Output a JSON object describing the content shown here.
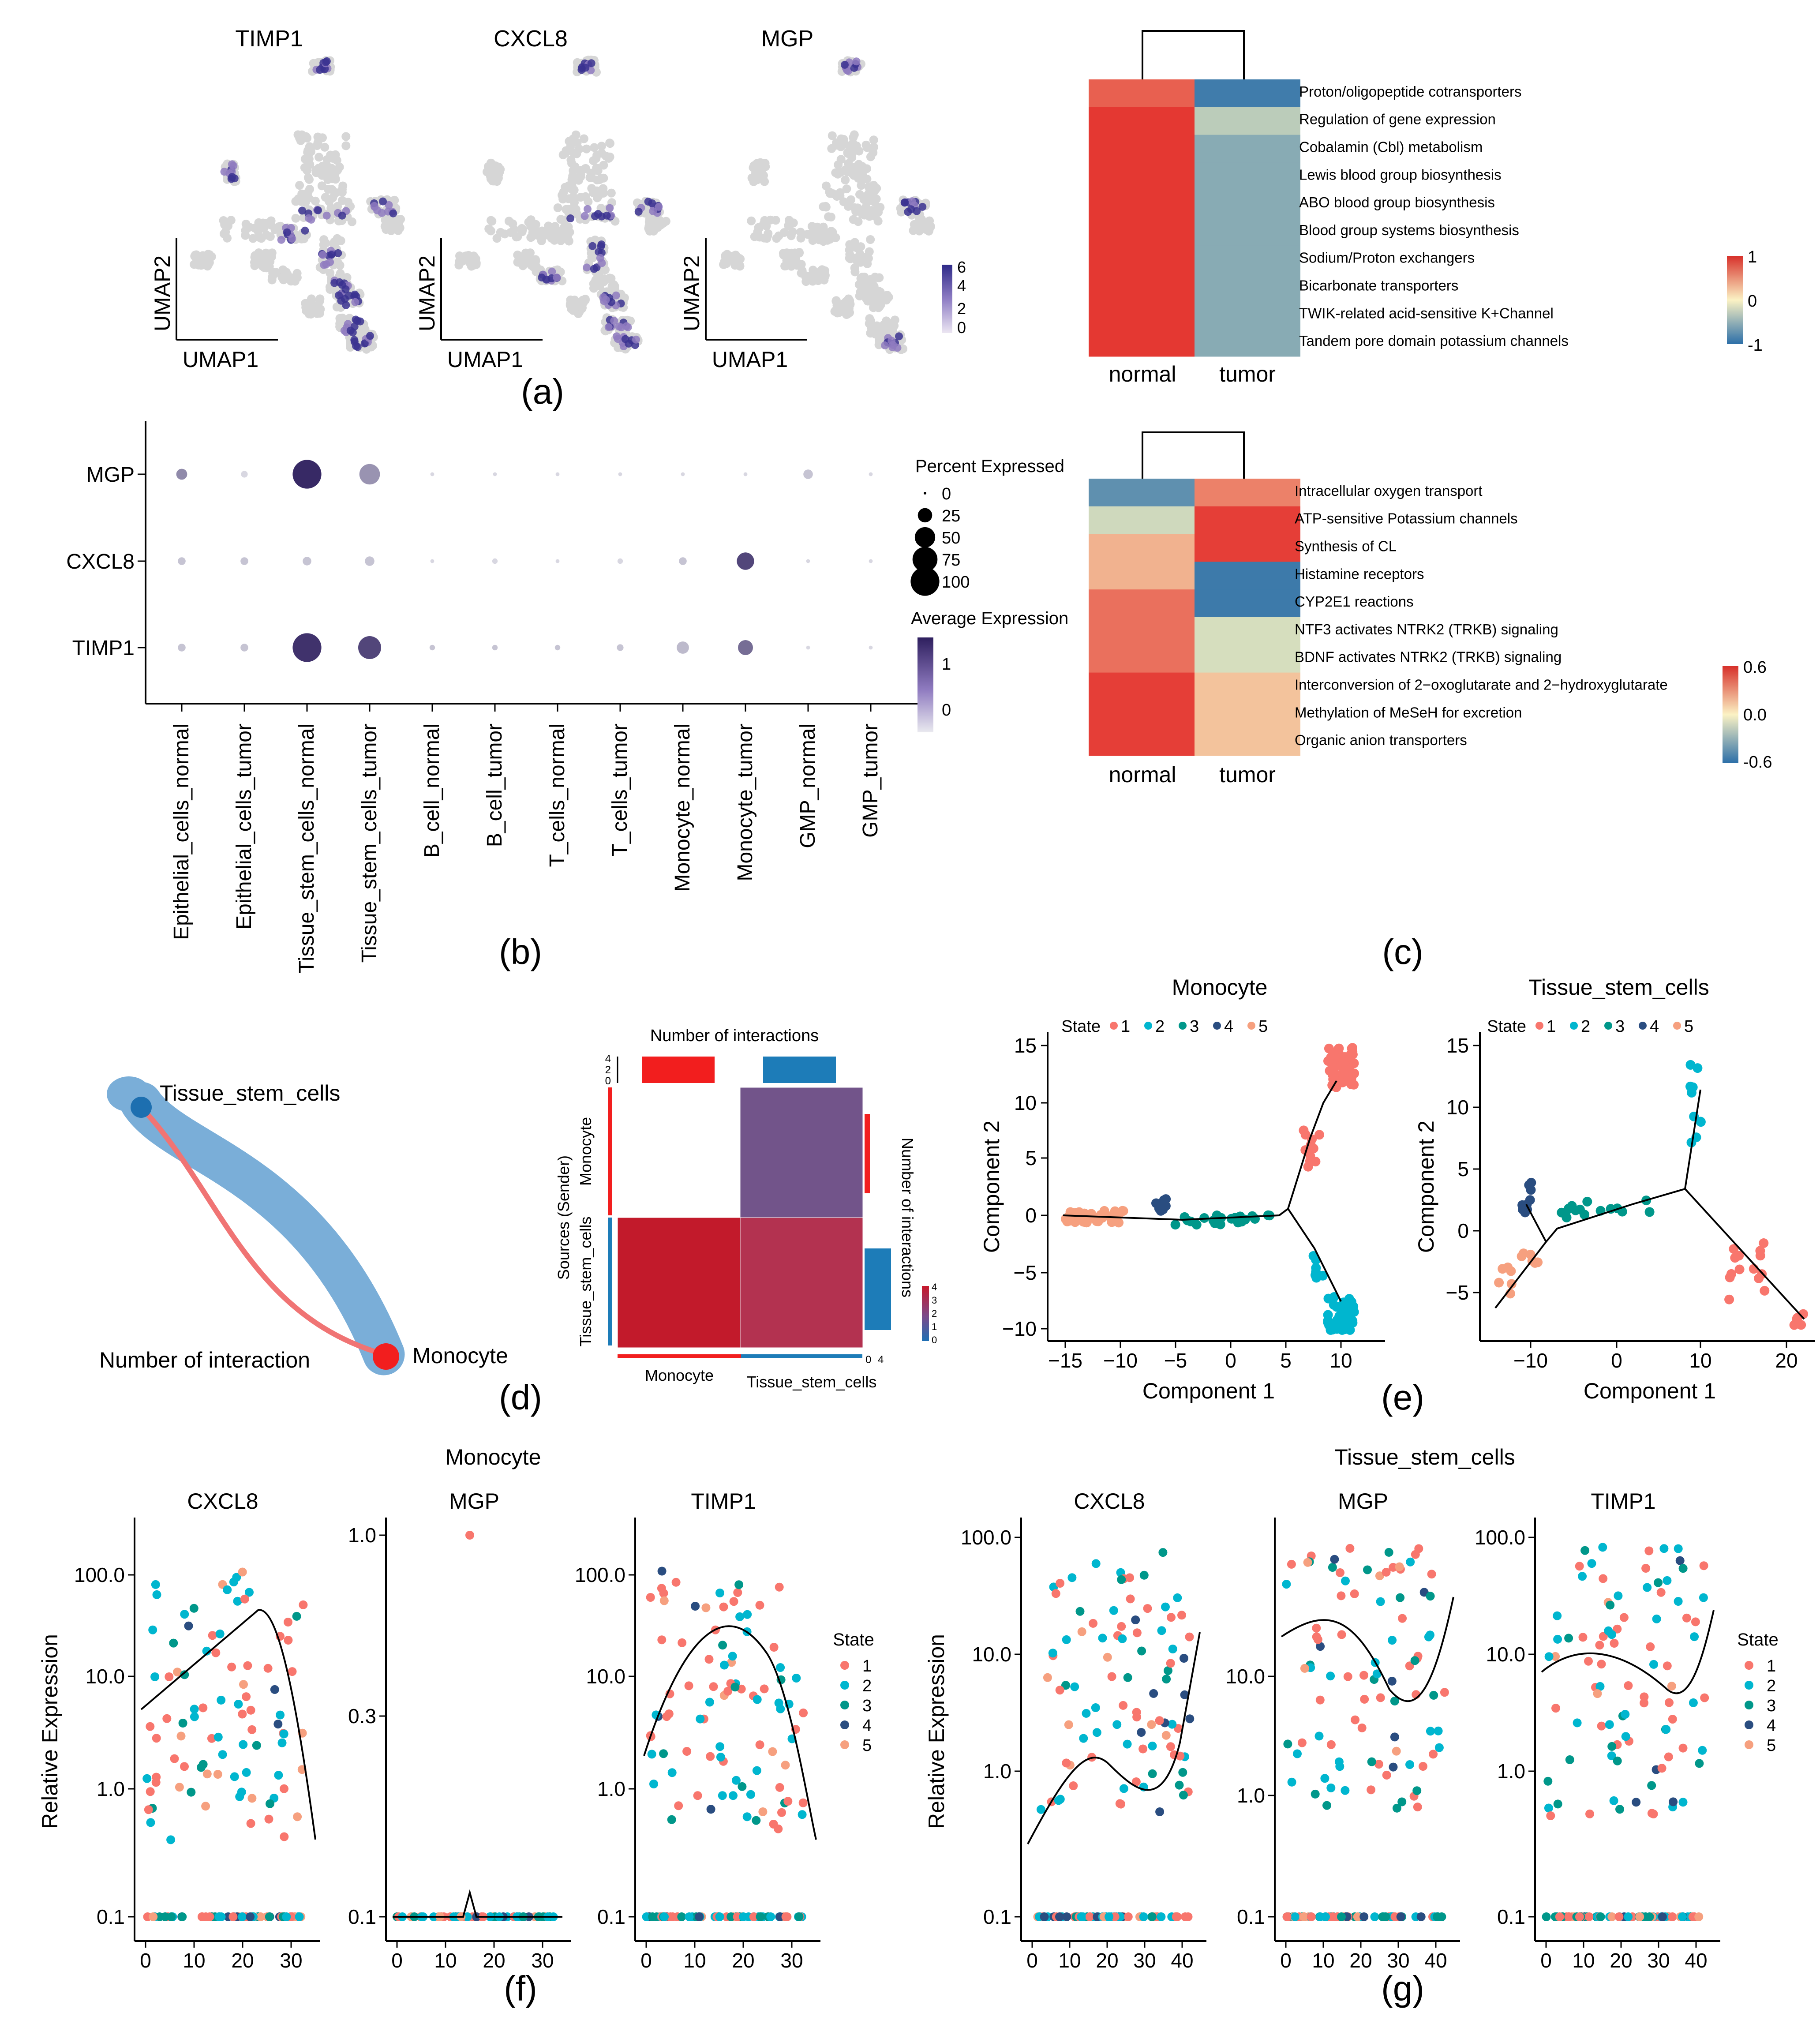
{
  "panel_labels": {
    "a": "(a)",
    "b": "(b)",
    "c": "(c)",
    "d": "(d)",
    "e": "(e)",
    "f": "(f)",
    "g": "(g)"
  },
  "colors": {
    "state1": "#F8766D",
    "state2": "#00B6CF",
    "state3": "#00978A",
    "state4": "#2A4D80",
    "state5": "#F6A07F",
    "heat_pos": "#E32E2A",
    "heat_neg": "#2C6FA8",
    "heat_mid": "#F8F4C2",
    "monocyte": "#F21E1E",
    "tissue": "#1D7CB8",
    "flow_blue": "#6FA9D8",
    "flow_red": "#F07474",
    "grey": "#D6D6D6",
    "purple_dark": "#3A237A",
    "purple_mid": "#8F7BC0"
  },
  "umap": {
    "genes": [
      "TIMP1",
      "CXCL8",
      "MGP"
    ],
    "xlabel": "UMAP1",
    "ylabel": "UMAP2",
    "legend_ticks": [
      "6",
      "4",
      "2",
      "0"
    ],
    "high_color": "#3B3290",
    "low_color": "#E0D8EC"
  },
  "heatmap_top": {
    "columns": [
      "normal",
      "tumor"
    ],
    "rows": [
      "Proton/oligopeptide cotransporters",
      "Regulation of gene expression",
      "Cobalamin (Cbl) metabolism",
      "Lewis blood group biosynthesis",
      "ABO blood group biosynthesis",
      "Blood group systems biosynthesis",
      "Sodium/Proton exchangers",
      "Bicarbonate transporters",
      "TWIK-related acid-sensitive K+Channel",
      "Tandem pore domain potassium channels"
    ],
    "values": [
      [
        0.75,
        -0.9
      ],
      [
        0.95,
        -0.3
      ],
      [
        0.95,
        -0.55
      ],
      [
        0.95,
        -0.55
      ],
      [
        0.95,
        -0.55
      ],
      [
        0.95,
        -0.55
      ],
      [
        0.95,
        -0.55
      ],
      [
        0.95,
        -0.55
      ],
      [
        0.95,
        -0.55
      ],
      [
        0.95,
        -0.55
      ]
    ],
    "scale_ticks": [
      "1",
      "0",
      "-1"
    ]
  },
  "heatmap_bottom": {
    "columns": [
      "normal",
      "tumor"
    ],
    "rows": [
      "Intracellular oxygen transport",
      "ATP-sensitive Potassium channels",
      "Synthesis of CL",
      "Histamine receptors",
      "CYP2E1 reactions",
      "NTF3 activates NTRK2 (TRKB) signaling",
      "BDNF activates NTRK2 (TRKB) signaling",
      "Interconversion of 2−oxoglutarate and 2−hydroxyglutarate",
      "Methylation of MeSeH for excretion",
      "Organic anion transporters"
    ],
    "values": [
      [
        -0.45,
        0.35
      ],
      [
        -0.12,
        0.55
      ],
      [
        0.2,
        0.55
      ],
      [
        0.2,
        -0.55
      ],
      [
        0.4,
        -0.55
      ],
      [
        0.4,
        -0.1
      ],
      [
        0.4,
        -0.1
      ],
      [
        0.55,
        0.15
      ],
      [
        0.55,
        0.15
      ],
      [
        0.55,
        0.15
      ]
    ],
    "scale_ticks": [
      "0.6",
      "0.0",
      "-0.6"
    ]
  },
  "dotplot": {
    "genes": [
      "MGP",
      "CXCL8",
      "TIMP1"
    ],
    "groups": [
      "Epithelial_cells_normal",
      "Epithelial_cells_tumor",
      "Tissue_stem_cells_normal",
      "Tissue_stem_cells_tumor",
      "B_cell_normal",
      "B_cell_tumor",
      "T_cells_normal",
      "T_cells_tumor",
      "Monocyte_normal",
      "Monocyte_tumor",
      "GMP_normal",
      "GMP_tumor"
    ],
    "pct": [
      [
        8,
        3,
        55,
        28,
        1,
        1,
        1,
        1,
        1,
        1,
        6,
        1
      ],
      [
        4,
        4,
        5,
        6,
        1,
        2,
        1,
        2,
        4,
        20,
        1,
        1
      ],
      [
        4,
        4,
        55,
        35,
        2,
        2,
        2,
        3,
        10,
        15,
        1,
        1
      ]
    ],
    "avg": [
      [
        0.3,
        -0.5,
        1.3,
        0.2,
        -0.5,
        -0.5,
        -0.5,
        -0.5,
        -0.5,
        -0.5,
        -0.3,
        -0.5
      ],
      [
        -0.3,
        -0.3,
        -0.3,
        -0.3,
        -0.5,
        -0.5,
        -0.5,
        -0.5,
        -0.3,
        1.0,
        -0.5,
        -0.5
      ],
      [
        -0.3,
        -0.3,
        1.2,
        1.0,
        -0.3,
        -0.3,
        -0.3,
        -0.3,
        -0.2,
        0.6,
        -0.5,
        -0.5
      ]
    ],
    "percent_title": "Percent Expressed",
    "percent_ticks": [
      "0",
      "25",
      "50",
      "75",
      "100"
    ],
    "avg_title": "Average Expression",
    "avg_ticks": [
      "1",
      "0"
    ]
  },
  "network": {
    "nodes": [
      "Tissue_stem_cells",
      "Monocyte"
    ],
    "title": "Number of interaction"
  },
  "interaction_heatmap": {
    "title": "Number of interactions",
    "rows": [
      "Monocyte",
      "Tissue_stem_cells"
    ],
    "cols": [
      "Monocyte",
      "Tissue_stem_cells"
    ],
    "values": [
      [
        0,
        2
      ],
      [
        4,
        3
      ]
    ],
    "row_axis_label": "Sources (Sender)",
    "right_axis_label": "Number of interactions",
    "top_ticks": [
      "4",
      "2",
      "0"
    ],
    "bottom_ticks": [
      "0",
      "4"
    ],
    "scale_ticks": [
      "4",
      "3",
      "2",
      "1",
      "0"
    ]
  },
  "trajectory": {
    "panels": [
      "Monocyte",
      "Tissue_stem_cells"
    ],
    "state_label": "State",
    "states": [
      "1",
      "2",
      "3",
      "4",
      "5"
    ],
    "xlabel": "Component 1",
    "ylabel": "Component 2",
    "monocyte_xticks": [
      "−15",
      "−10",
      "−5",
      "0",
      "5",
      "10"
    ],
    "monocyte_yticks": [
      "15",
      "10",
      "5",
      "0",
      "−5",
      "−10"
    ],
    "tissue_xticks": [
      "−10",
      "0",
      "10",
      "20"
    ],
    "tissue_yticks": [
      "15",
      "10",
      "5",
      "0",
      "−5"
    ]
  },
  "pseudotime": {
    "group_titles": [
      "Monocyte",
      "Tissue_stem_cells"
    ],
    "genes": [
      "CXCL8",
      "MGP",
      "TIMP1"
    ],
    "ylabel": "Relative Expression",
    "state_label": "State",
    "states": [
      "1",
      "2",
      "3",
      "4",
      "5"
    ],
    "mono_xticks": [
      "0",
      "10",
      "20",
      "30"
    ],
    "tissue_xticks": [
      "0",
      "10",
      "20",
      "30",
      "40"
    ],
    "log_ticks": [
      "100.0",
      "10.0",
      "1.0",
      "0.1"
    ],
    "mgp_mono_ticks": [
      "1.0",
      "0.3",
      "0.1"
    ]
  }
}
